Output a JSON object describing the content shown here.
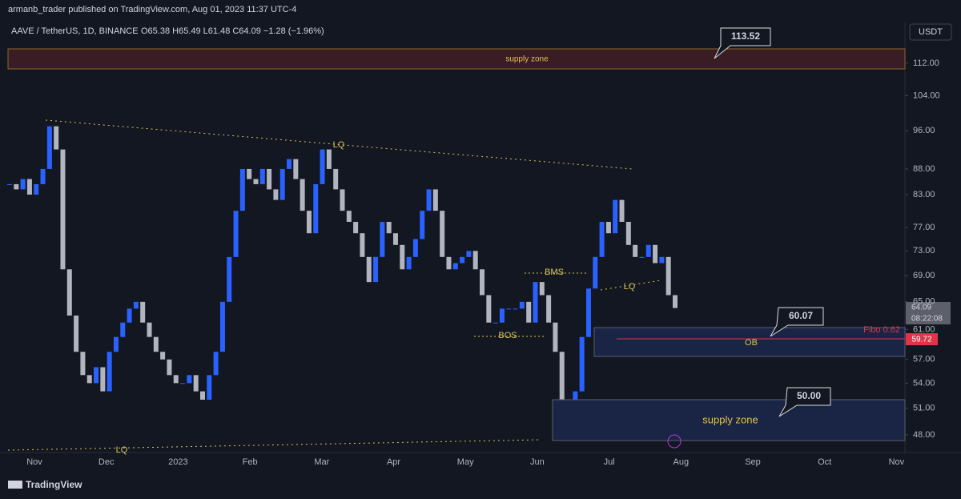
{
  "header": {
    "publisher": "armanb_trader published on TradingView.com, Aug 01, 2023 11:37 UTC-4",
    "symbol": "AAVE / TetherUS, 1D, BINANCE",
    "ohlc": "O65.38 H65.49 L61.48 C64.09 −1.28 (−1.96%)",
    "currency": "USDT"
  },
  "footer": {
    "brand": "TradingView"
  },
  "annotations": {
    "supply_top": "supply zone",
    "supply_bottom": "supply zone",
    "ob": "OB",
    "bms": "BMS",
    "bos": "BOS",
    "lq_top": "LQ",
    "lq_mid": "LQ",
    "lq_bottom": "LQ",
    "fibo": "Fibo 0.62",
    "callout_top": "113.52",
    "callout_mid": "60.07",
    "callout_bottom": "50.00",
    "last_price": "64.09",
    "countdown": "08:22:08",
    "fibo_price": "59.72"
  },
  "chart_data": {
    "type": "candlestick",
    "log": true,
    "ylim": [
      46.1,
      122.9
    ],
    "yticks": [
      {
        "value": 48,
        "label": "48.00"
      },
      {
        "value": 51,
        "label": "51.00"
      },
      {
        "value": 54,
        "label": "54.00"
      },
      {
        "value": 57,
        "label": "57.00"
      },
      {
        "value": 61,
        "label": "61.00"
      },
      {
        "value": 65,
        "label": "65.00"
      },
      {
        "value": 69,
        "label": "69.00"
      },
      {
        "value": 73,
        "label": "73.00"
      },
      {
        "value": 77,
        "label": "77.00"
      },
      {
        "value": 83,
        "label": "83.00"
      },
      {
        "value": 88,
        "label": "88.00"
      },
      {
        "value": 96,
        "label": "96.00"
      },
      {
        "value": 104,
        "label": "104.00"
      },
      {
        "value": 112,
        "label": "112.00"
      }
    ],
    "xtick_labels": [
      "Nov",
      "Dec",
      "2023",
      "Feb",
      "Mar",
      "Apr",
      "May",
      "Jun",
      "Jul",
      "Aug",
      "Sep",
      "Oct",
      "Nov"
    ],
    "up_color": "#2962ff",
    "down_color": "#b2b5be",
    "values": [
      85,
      84,
      86,
      83,
      85,
      88,
      97,
      92,
      70,
      63,
      58,
      55,
      54,
      56,
      53,
      58,
      60,
      62,
      64,
      65,
      62,
      60,
      58,
      57,
      55,
      54,
      54,
      55,
      53,
      52,
      55,
      58,
      65,
      72,
      80,
      88,
      86,
      85,
      88,
      84,
      82,
      88,
      90,
      86,
      80,
      76,
      85,
      92,
      88,
      84,
      80,
      78,
      76,
      72,
      68,
      72,
      78,
      76,
      74,
      70,
      72,
      75,
      80,
      84,
      80,
      72,
      70,
      71,
      72,
      73,
      70,
      66,
      62,
      62,
      64,
      64,
      64,
      65,
      62,
      68,
      66,
      62,
      58,
      52,
      50,
      53,
      60,
      67,
      72,
      78,
      76,
      82,
      78,
      74,
      72,
      72,
      74,
      71,
      72,
      66,
      64.09
    ]
  }
}
